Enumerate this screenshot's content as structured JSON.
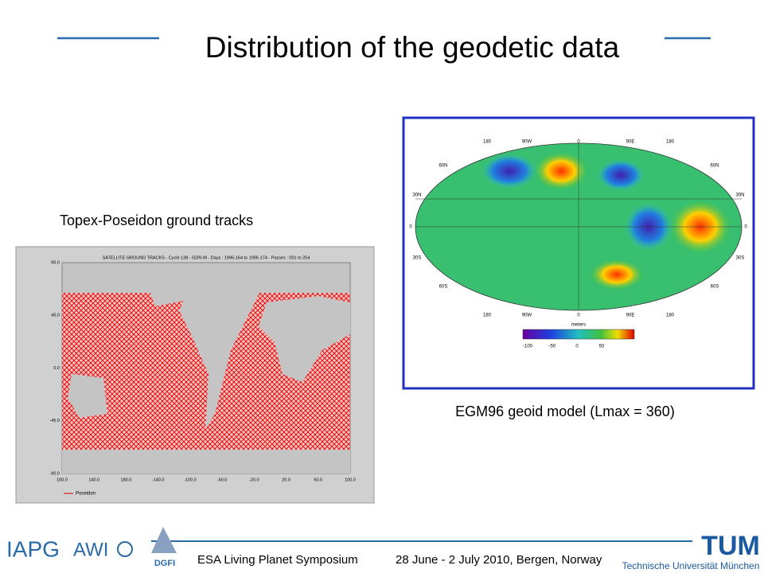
{
  "slide": {
    "title": "Distribution of the geodetic data",
    "left_caption": "Topex-Poseidon ground tracks",
    "right_caption": "EGM96 geoid model (Lmax = 360)",
    "tracks_figure": {
      "title": "SATELLITE GROUND TRACKS - Cycle 138 - GDR-M - Days : 1996-164 to 1996-174 - Passes : 001 to 254",
      "y_labels": [
        "90.0",
        "45.0",
        "0.0",
        "-45.0",
        "-90.0"
      ],
      "x_labels": [
        "100.0",
        "140.0",
        "180.0",
        "-140.0",
        "-100.0",
        "-60.0",
        "-20.0",
        "20.0",
        "60.0",
        "100.0"
      ],
      "legend": "Poseidon"
    },
    "geoid_figure": {
      "top_labels": [
        "180",
        "90W",
        "0",
        "90E",
        "180"
      ],
      "bottom_labels": [
        "180",
        "90W",
        "0",
        "90E",
        "180"
      ],
      "left_labels": [
        "60N",
        "30N",
        "0",
        "30S",
        "60S"
      ],
      "right_labels": [
        "60N",
        "30N",
        "0",
        "30S",
        "60S"
      ],
      "colorbar_title": "meters",
      "colorbar_labels": [
        "-100",
        "-50",
        "0",
        "50"
      ]
    },
    "footer": {
      "logos": [
        "IAPG",
        "AWI",
        "DGFI",
        "TUM"
      ],
      "university": "Technische Universität München",
      "event": "ESA Living Planet Symposium",
      "dates": "28 June - 2 July 2010, Bergen, Norway"
    }
  }
}
